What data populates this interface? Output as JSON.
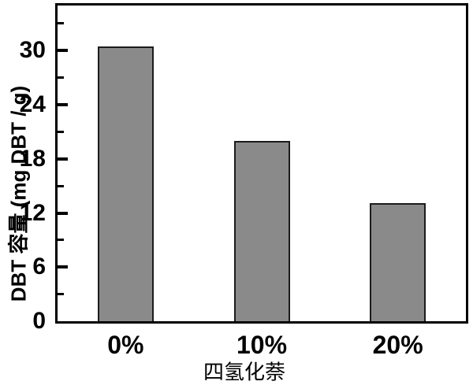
{
  "figure": {
    "background": "#ffffff"
  },
  "chart_data": {
    "type": "bar",
    "title": "",
    "categories": [
      "0%",
      "10%",
      "20%"
    ],
    "values": [
      30.5,
      20.0,
      13.1
    ],
    "xlabel": "四氢化萘",
    "ylabel": "DBT 容量 (mg DBT / g)",
    "ylim": [
      0,
      35
    ],
    "y_major_ticks": [
      0,
      6,
      12,
      18,
      24,
      30
    ],
    "y_minor_tick_step": 3,
    "grid": false,
    "legend": null,
    "bar_fill_color": "#8a8a8a",
    "bar_border_color": "#1c1c1c",
    "axis_color": "#000000",
    "text_color": "#000000",
    "background": "#ffffff"
  }
}
